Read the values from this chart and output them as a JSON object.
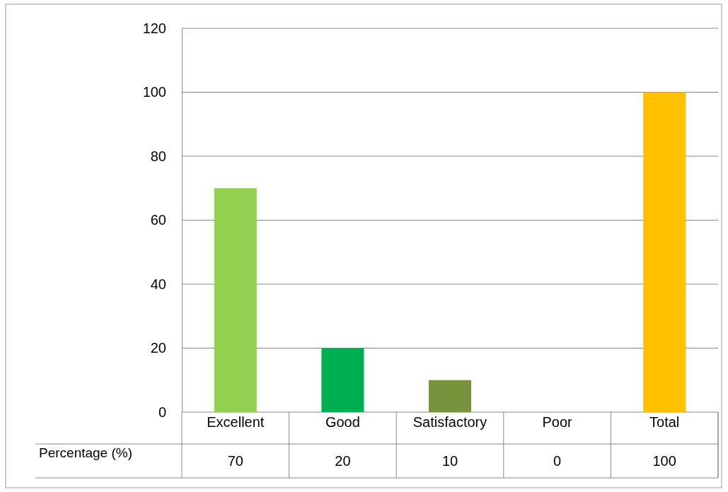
{
  "chart_data": {
    "type": "bar",
    "categories": [
      "Excellent",
      "Good",
      "Satisfactory",
      "Poor",
      "Total"
    ],
    "series": [
      {
        "name": "Percentage (%)",
        "colors": [
          "#92d050",
          "#00b050",
          "#77933c",
          "#c0504d",
          "#ffc000"
        ],
        "values": [
          70,
          20,
          10,
          0,
          100
        ]
      }
    ],
    "ylim": [
      0,
      120
    ],
    "yticks": [
      0,
      20,
      40,
      60,
      80,
      100,
      120
    ],
    "grid": "y",
    "data_labels": true
  }
}
